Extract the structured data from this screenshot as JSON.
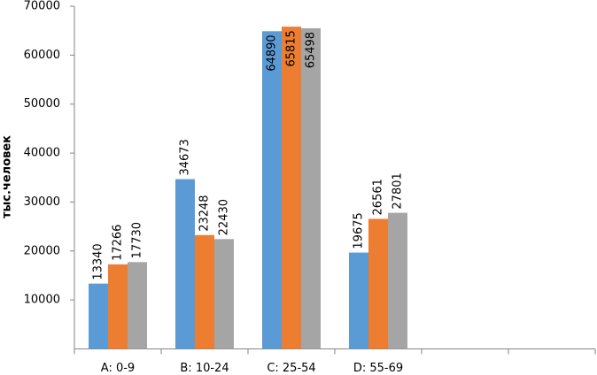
{
  "chart_data": {
    "type": "bar",
    "y_axis_label": "тыс.человек",
    "categories": [
      "A: 0-9",
      "B: 10-24",
      "C: 25-54",
      "D: 55-69",
      null,
      null
    ],
    "series": [
      {
        "color": "#5b9bd5",
        "values": [
          13340,
          34673,
          64890,
          19675,
          null,
          null
        ]
      },
      {
        "color": "#ed7d31",
        "values": [
          17266,
          23248,
          65815,
          26561,
          null,
          null
        ]
      },
      {
        "color": "#a5a5a5",
        "values": [
          17730,
          22430,
          65498,
          27801,
          null,
          null
        ]
      }
    ],
    "ylim": [
      0,
      70000
    ],
    "yticks": [
      10000,
      20000,
      30000,
      40000,
      50000,
      60000,
      70000
    ],
    "grid": false
  }
}
